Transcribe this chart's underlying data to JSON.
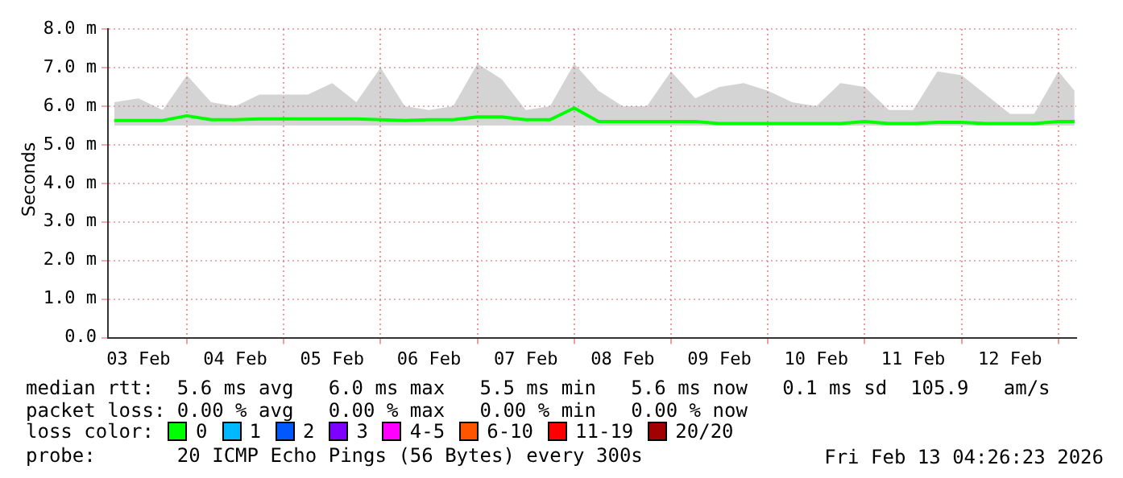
{
  "chart_data": {
    "type": "line",
    "ylabel": "Seconds",
    "legend_title": "loss color:",
    "legend": "bottom",
    "grid": true,
    "marker": "none",
    "line_style": "solid",
    "xlim": [
      "2026-02-03T04:26",
      "2026-02-13T04:26"
    ],
    "xticks": [
      {
        "value": "2026-02-03T12:00",
        "label": "03 Feb"
      },
      {
        "value": "2026-02-04T00:00",
        "label": null
      },
      {
        "value": "2026-02-04T12:00",
        "label": "04 Feb"
      },
      {
        "value": "2026-02-05T00:00",
        "label": null
      },
      {
        "value": "2026-02-05T12:00",
        "label": "05 Feb"
      },
      {
        "value": "2026-02-06T00:00",
        "label": null
      },
      {
        "value": "2026-02-06T12:00",
        "label": "06 Feb"
      },
      {
        "value": "2026-02-07T00:00",
        "label": null
      },
      {
        "value": "2026-02-07T12:00",
        "label": "07 Feb"
      },
      {
        "value": "2026-02-08T00:00",
        "label": null
      },
      {
        "value": "2026-02-08T12:00",
        "label": "08 Feb"
      },
      {
        "value": "2026-02-09T00:00",
        "label": null
      },
      {
        "value": "2026-02-09T12:00",
        "label": "09 Feb"
      },
      {
        "value": "2026-02-10T00:00",
        "label": null
      },
      {
        "value": "2026-02-10T12:00",
        "label": "10 Feb"
      },
      {
        "value": "2026-02-11T00:00",
        "label": null
      },
      {
        "value": "2026-02-11T12:00",
        "label": "11 Feb"
      },
      {
        "value": "2026-02-12T00:00",
        "label": null
      },
      {
        "value": "2026-02-12T12:00",
        "label": "12 Feb"
      },
      {
        "value": "2026-02-13T00:00",
        "label": null
      }
    ],
    "ylim": [
      0,
      8
    ],
    "yticks": [
      {
        "value": 0,
        "label": "0.0"
      },
      {
        "value": 1,
        "label": "1.0 m"
      },
      {
        "value": 2,
        "label": "2.0 m"
      },
      {
        "value": 3,
        "label": "3.0 m"
      },
      {
        "value": 4,
        "label": "4.0 m"
      },
      {
        "value": 5,
        "label": "5.0 m"
      },
      {
        "value": 6,
        "label": "6.0 m"
      },
      {
        "value": 7,
        "label": "7.0 m"
      },
      {
        "value": 8,
        "label": "8.0 m"
      }
    ],
    "x": [
      "2026-02-03T06:00",
      "2026-02-03T12:00",
      "2026-02-03T18:00",
      "2026-02-04T00:00",
      "2026-02-04T06:00",
      "2026-02-04T12:00",
      "2026-02-04T18:00",
      "2026-02-05T00:00",
      "2026-02-05T06:00",
      "2026-02-05T12:00",
      "2026-02-05T18:00",
      "2026-02-06T00:00",
      "2026-02-06T06:00",
      "2026-02-06T12:00",
      "2026-02-06T18:00",
      "2026-02-07T00:00",
      "2026-02-07T06:00",
      "2026-02-07T12:00",
      "2026-02-07T18:00",
      "2026-02-08T00:00",
      "2026-02-08T06:00",
      "2026-02-08T12:00",
      "2026-02-08T18:00",
      "2026-02-09T00:00",
      "2026-02-09T06:00",
      "2026-02-09T12:00",
      "2026-02-09T18:00",
      "2026-02-10T00:00",
      "2026-02-10T06:00",
      "2026-02-10T12:00",
      "2026-02-10T18:00",
      "2026-02-11T00:00",
      "2026-02-11T06:00",
      "2026-02-11T12:00",
      "2026-02-11T18:00",
      "2026-02-12T00:00",
      "2026-02-12T06:00",
      "2026-02-12T12:00",
      "2026-02-12T18:00",
      "2026-02-13T00:00",
      "2026-02-13T04:00"
    ],
    "series": [
      {
        "name": "0",
        "color": "#00ff00",
        "values": [
          5.63,
          5.63,
          5.63,
          5.75,
          5.65,
          5.65,
          5.67,
          5.67,
          5.67,
          5.67,
          5.67,
          5.65,
          5.63,
          5.65,
          5.65,
          5.72,
          5.72,
          5.65,
          5.65,
          5.95,
          5.6,
          5.6,
          5.6,
          5.6,
          5.6,
          5.55,
          5.55,
          5.55,
          5.55,
          5.55,
          5.55,
          5.6,
          5.55,
          5.55,
          5.58,
          5.58,
          5.55,
          5.55,
          5.55,
          5.6,
          5.6
        ],
        "lower": [
          5.5,
          5.5,
          5.5,
          5.5,
          5.5,
          5.5,
          5.5,
          5.5,
          5.5,
          5.5,
          5.5,
          5.5,
          5.5,
          5.5,
          5.5,
          5.5,
          5.5,
          5.5,
          5.5,
          5.5,
          5.5,
          5.5,
          5.5,
          5.5,
          5.5,
          5.5,
          5.5,
          5.5,
          5.5,
          5.5,
          5.5,
          5.5,
          5.5,
          5.5,
          5.5,
          5.5,
          5.5,
          5.5,
          5.5,
          5.5,
          5.5
        ],
        "upper": [
          6.1,
          6.2,
          5.9,
          6.8,
          6.1,
          6.0,
          6.3,
          6.3,
          6.3,
          6.6,
          6.1,
          7.0,
          6.0,
          5.9,
          6.0,
          7.1,
          6.7,
          5.9,
          6.0,
          7.1,
          6.4,
          6.0,
          6.0,
          6.9,
          6.2,
          6.5,
          6.6,
          6.4,
          6.1,
          6.0,
          6.6,
          6.5,
          5.9,
          5.9,
          6.9,
          6.8,
          6.3,
          5.8,
          5.8,
          6.9,
          6.4
        ]
      },
      {
        "name": "1",
        "color": "#00b8ff",
        "values": [
          null,
          null,
          null,
          null,
          null,
          null,
          null,
          null,
          null,
          null,
          null,
          null,
          null,
          null,
          null,
          null,
          null,
          null,
          null,
          null,
          null,
          null,
          null,
          null,
          null,
          null,
          null,
          null,
          null,
          null,
          null,
          null,
          null,
          null,
          null,
          null,
          null,
          null,
          null,
          null,
          null
        ]
      },
      {
        "name": "2",
        "color": "#0059ff",
        "values": [
          null,
          null,
          null,
          null,
          null,
          null,
          null,
          null,
          null,
          null,
          null,
          null,
          null,
          null,
          null,
          null,
          null,
          null,
          null,
          null,
          null,
          null,
          null,
          null,
          null,
          null,
          null,
          null,
          null,
          null,
          null,
          null,
          null,
          null,
          null,
          null,
          null,
          null,
          null,
          null,
          null
        ]
      },
      {
        "name": "3",
        "color": "#7e00ff",
        "values": [
          null,
          null,
          null,
          null,
          null,
          null,
          null,
          null,
          null,
          null,
          null,
          null,
          null,
          null,
          null,
          null,
          null,
          null,
          null,
          null,
          null,
          null,
          null,
          null,
          null,
          null,
          null,
          null,
          null,
          null,
          null,
          null,
          null,
          null,
          null,
          null,
          null,
          null,
          null,
          null,
          null
        ]
      },
      {
        "name": "4-5",
        "color": "#ff00ff",
        "values": [
          null,
          null,
          null,
          null,
          null,
          null,
          null,
          null,
          null,
          null,
          null,
          null,
          null,
          null,
          null,
          null,
          null,
          null,
          null,
          null,
          null,
          null,
          null,
          null,
          null,
          null,
          null,
          null,
          null,
          null,
          null,
          null,
          null,
          null,
          null,
          null,
          null,
          null,
          null,
          null,
          null
        ]
      },
      {
        "name": "6-10",
        "color": "#ff5500",
        "values": [
          null,
          null,
          null,
          null,
          null,
          null,
          null,
          null,
          null,
          null,
          null,
          null,
          null,
          null,
          null,
          null,
          null,
          null,
          null,
          null,
          null,
          null,
          null,
          null,
          null,
          null,
          null,
          null,
          null,
          null,
          null,
          null,
          null,
          null,
          null,
          null,
          null,
          null,
          null,
          null,
          null
        ]
      },
      {
        "name": "11-19",
        "color": "#ff0000",
        "values": [
          null,
          null,
          null,
          null,
          null,
          null,
          null,
          null,
          null,
          null,
          null,
          null,
          null,
          null,
          null,
          null,
          null,
          null,
          null,
          null,
          null,
          null,
          null,
          null,
          null,
          null,
          null,
          null,
          null,
          null,
          null,
          null,
          null,
          null,
          null,
          null,
          null,
          null,
          null,
          null,
          null
        ]
      },
      {
        "name": "20/20",
        "color": "#a10000",
        "values": [
          null,
          null,
          null,
          null,
          null,
          null,
          null,
          null,
          null,
          null,
          null,
          null,
          null,
          null,
          null,
          null,
          null,
          null,
          null,
          null,
          null,
          null,
          null,
          null,
          null,
          null,
          null,
          null,
          null,
          null,
          null,
          null,
          null,
          null,
          null,
          null,
          null,
          null,
          null,
          null,
          null
        ]
      }
    ],
    "annotations": [
      "median rtt:  5.6 ms avg   6.0 ms max   5.5 ms min   5.6 ms now   0.1 ms sd  105.9   am/s",
      "packet loss: 0.00 % avg   0.00 % max   0.00 % min   0.00 % now",
      "probe:       20 ICMP Echo Pings (56 Bytes) every 300s",
      "Fri Feb 13 04:26:23 2026"
    ]
  }
}
